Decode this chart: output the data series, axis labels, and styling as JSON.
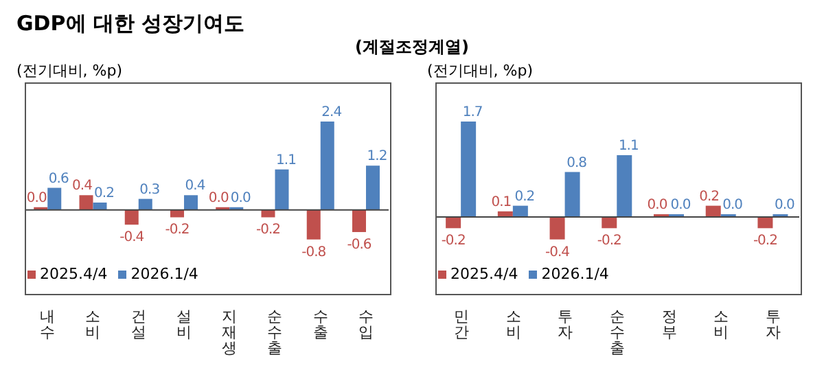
{
  "chart_data": [
    {
      "type": "bar",
      "title": "GDP에 대한 성장기여도",
      "subtitle": "(계절조정계열)",
      "ylabel": "(전기대비, %p)",
      "categories": [
        "내수",
        "소비",
        "건설",
        "설비",
        "지재생",
        "순수출",
        "수출",
        "수입"
      ],
      "series": [
        {
          "name": "2025.4/4",
          "color": "#c0504d",
          "values": [
            0.0,
            0.4,
            -0.4,
            -0.2,
            0.0,
            -0.2,
            -0.8,
            -0.6
          ],
          "value_labels": [
            "0.0",
            "0.4",
            "-0.4",
            "-0.2",
            "0.0",
            "-0.2",
            "-0.8",
            "-0.6"
          ]
        },
        {
          "name": "2026.1/4",
          "color": "#4f81bd",
          "values": [
            0.6,
            0.2,
            0.3,
            0.4,
            0.0,
            1.1,
            2.4,
            1.2
          ],
          "value_labels": [
            "0.6",
            "0.2",
            "0.3",
            "0.4",
            "0.0",
            "1.1",
            "2.4",
            "1.2"
          ]
        }
      ],
      "grid": false,
      "legend": "bottom left"
    },
    {
      "type": "bar",
      "ylabel": "(전기대비, %p)",
      "categories": [
        "민간",
        "소비",
        "투자",
        "순수출",
        "정부",
        "소비",
        "투자"
      ],
      "series": [
        {
          "name": "2025.4/4",
          "color": "#c0504d",
          "values": [
            -0.2,
            0.1,
            -0.4,
            -0.2,
            0.0,
            0.2,
            -0.2
          ],
          "value_labels": [
            "-0.2",
            "0.1",
            "-0.4",
            "-0.2",
            "0.0",
            "0.2",
            "-0.2"
          ]
        },
        {
          "name": "2026.1/4",
          "color": "#4f81bd",
          "values": [
            1.7,
            0.2,
            0.8,
            1.1,
            0.0,
            0.0,
            0.0
          ],
          "value_labels": [
            "1.7",
            "0.2",
            "0.8",
            "1.1",
            "0.0",
            "0.0",
            "0.0"
          ]
        }
      ],
      "grid": false,
      "legend": "bottom left"
    }
  ]
}
